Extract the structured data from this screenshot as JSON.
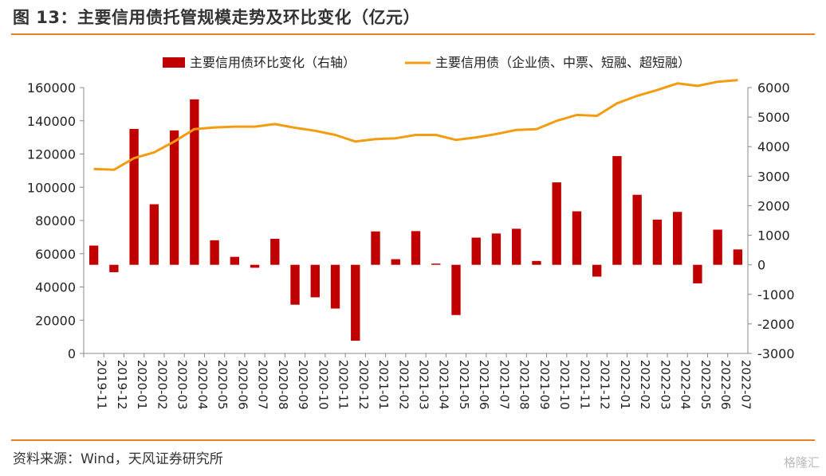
{
  "header": {
    "title": "图 13：主要信用债托管规模走势及环比变化（亿元）"
  },
  "footer": {
    "source": "资料来源：Wind，天风证券研究所",
    "watermark": "格隆汇"
  },
  "colors": {
    "bar": "#c00000",
    "line": "#f39c12",
    "rule": "#e8821e"
  },
  "chart_data": {
    "type": "bar",
    "categories": [
      "2019-11",
      "2019-12",
      "2020-01",
      "2020-02",
      "2020-03",
      "2020-04",
      "2020-05",
      "2020-06",
      "2020-07",
      "2020-08",
      "2020-09",
      "2020-10",
      "2020-11",
      "2020-12",
      "2021-01",
      "2021-02",
      "2021-03",
      "2021-04",
      "2021-05",
      "2021-06",
      "2021-07",
      "2021-08",
      "2021-09",
      "2021-10",
      "2021-11",
      "2021-12",
      "2022-01",
      "2022-02",
      "2022-03",
      "2022-04",
      "2022-05",
      "2022-06",
      "2022-07"
    ],
    "series": [
      {
        "name": "主要信用债环比变化（右轴）",
        "type": "bar",
        "axis": "right",
        "values": [
          650,
          -250,
          4600,
          2050,
          4550,
          5600,
          830,
          270,
          -100,
          880,
          -1350,
          -1100,
          -1480,
          -2570,
          1130,
          190,
          1140,
          40,
          -1700,
          920,
          1060,
          1220,
          130,
          2790,
          1810,
          -400,
          3680,
          2370,
          1530,
          1790,
          -630,
          1190,
          520
        ]
      },
      {
        "name": "主要信用债（企业债、中票、短融、超短融）",
        "type": "line",
        "axis": "left",
        "values": [
          111000,
          110500,
          117500,
          121000,
          127500,
          135000,
          136000,
          136500,
          136500,
          138000,
          135800,
          134000,
          131500,
          127500,
          129000,
          129500,
          131500,
          131500,
          128500,
          130000,
          132000,
          134500,
          135000,
          140000,
          143500,
          143000,
          150500,
          155000,
          158500,
          162500,
          161000,
          163500,
          164500
        ]
      }
    ],
    "yleft": {
      "ticks": [
        "0",
        "20000",
        "40000",
        "60000",
        "80000",
        "100000",
        "120000",
        "140000",
        "160000"
      ],
      "ylim": [
        0,
        160000
      ]
    },
    "yright": {
      "ticks": [
        "-3000",
        "-2000",
        "-1000",
        "0",
        "1000",
        "2000",
        "3000",
        "4000",
        "5000",
        "6000"
      ],
      "ylim": [
        -3000,
        6000
      ]
    },
    "legend": "top-center",
    "grid": false
  }
}
